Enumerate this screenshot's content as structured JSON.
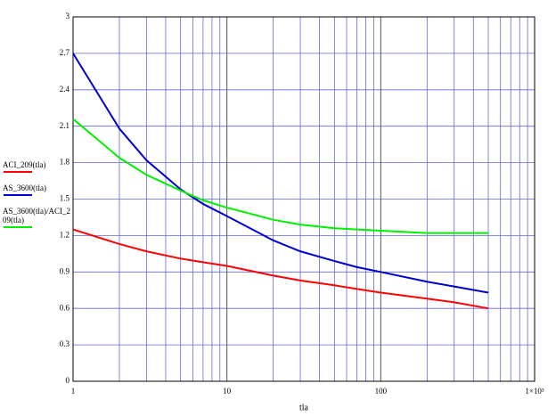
{
  "chart_data": {
    "type": "line",
    "x_label": "tla",
    "x": [
      1,
      2,
      3,
      5,
      7,
      10,
      20,
      30,
      50,
      70,
      100,
      200,
      300,
      500
    ],
    "series": [
      {
        "name": "ACI_209(tla)",
        "color": "#ff0000",
        "values": [
          1.25,
          1.13,
          1.07,
          1.01,
          0.98,
          0.95,
          0.87,
          0.83,
          0.79,
          0.76,
          0.73,
          0.68,
          0.65,
          0.6
        ]
      },
      {
        "name": "AS_3600(tla)",
        "color": "#0000cc",
        "values": [
          2.7,
          2.08,
          1.82,
          1.58,
          1.46,
          1.36,
          1.16,
          1.07,
          0.99,
          0.94,
          0.9,
          0.82,
          0.78,
          0.73
        ]
      },
      {
        "name": "AS_3600(tla)/ACI_209(tla)",
        "color": "#00ee00",
        "values": [
          2.16,
          1.84,
          1.7,
          1.57,
          1.49,
          1.43,
          1.33,
          1.29,
          1.26,
          1.25,
          1.24,
          1.22,
          1.22,
          1.22
        ]
      }
    ],
    "xscale": "log",
    "xlim": [
      1,
      1000
    ],
    "xticks": [
      1,
      10,
      100,
      {
        "value": 1000,
        "label": "1×10³"
      }
    ],
    "ylim": [
      0,
      3
    ],
    "yticks": [
      0,
      0.3,
      0.6,
      0.9,
      1.2,
      1.5,
      1.8,
      2.1,
      2.4,
      2.7,
      3
    ],
    "grid": true
  }
}
